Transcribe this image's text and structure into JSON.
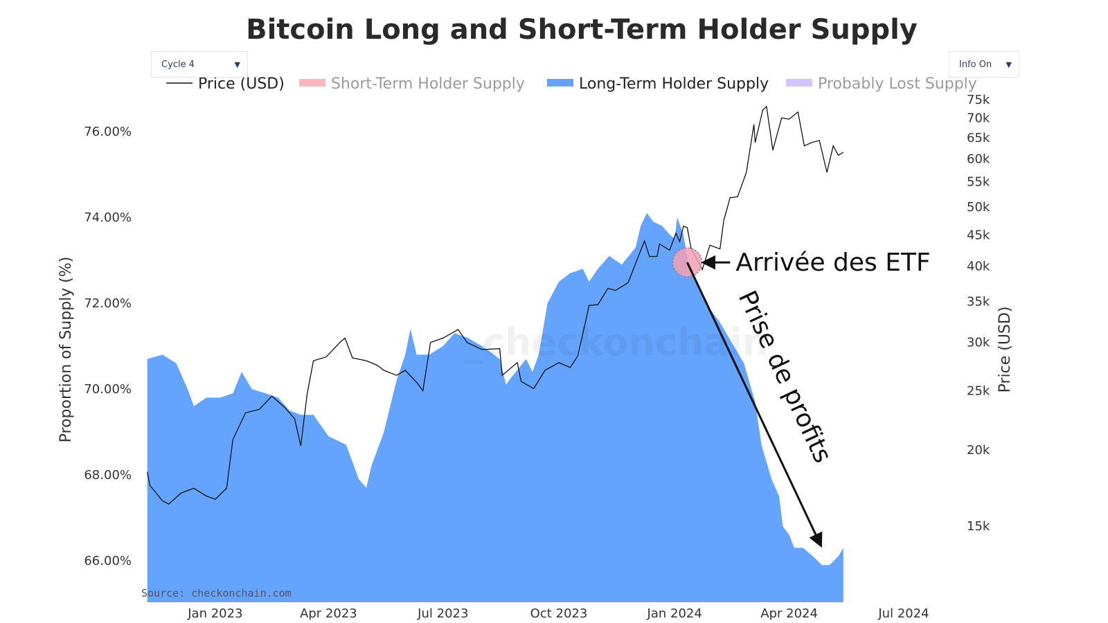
{
  "controls": {
    "cycle_select": "Cycle 4",
    "info_select": "Info On",
    "arrow_glyph": "▼"
  },
  "colors": {
    "price_line": "#111111",
    "sth_supply": "#ffb6c1",
    "lth_supply": "#64a4ff",
    "lost_supply": "#d2c4ff",
    "legend_inactive_text": "#9a9a9a",
    "etf_marker": "#f3a0b4"
  },
  "chart_data": {
    "type": "area",
    "title": "Bitcoin Long and Short-Term Holder Supply",
    "legend": [
      {
        "name": "Price (USD)",
        "symbol": "line",
        "active": true
      },
      {
        "name": "Short-Term Holder Supply",
        "symbol": "box",
        "active": false
      },
      {
        "name": "Long-Term Holder Supply",
        "symbol": "box",
        "active": true
      },
      {
        "name": "Probably Lost Supply",
        "symbol": "box",
        "active": false
      }
    ],
    "legend_position": "top",
    "x_axis": {
      "type": "date",
      "range": [
        "2022-11-01",
        "2024-07-31"
      ],
      "ticks": [
        {
          "date": "2023-01-01",
          "label": "Jan 2023"
        },
        {
          "date": "2023-04-01",
          "label": "Apr 2023"
        },
        {
          "date": "2023-07-01",
          "label": "Jul 2023"
        },
        {
          "date": "2023-10-01",
          "label": "Oct 2023"
        },
        {
          "date": "2024-01-01",
          "label": "Jan 2024"
        },
        {
          "date": "2024-04-01",
          "label": "Apr 2024"
        },
        {
          "date": "2024-07-01",
          "label": "Jul 2024"
        }
      ]
    },
    "y_left": {
      "title": "Proportion of Supply (%)",
      "range": [
        65.0,
        77.0
      ],
      "ticks": [
        {
          "v": 66,
          "label": "66.00%"
        },
        {
          "v": 68,
          "label": "68.00%"
        },
        {
          "v": 70,
          "label": "70.00%"
        },
        {
          "v": 72,
          "label": "72.00%"
        },
        {
          "v": 74,
          "label": "74.00%"
        },
        {
          "v": 76,
          "label": "76.00%"
        }
      ]
    },
    "y_right": {
      "title": "Price (USD)",
      "scale": "log",
      "range": [
        11000,
        78000
      ],
      "ticks": [
        {
          "v": 15000,
          "label": "15k"
        },
        {
          "v": 20000,
          "label": "20k"
        },
        {
          "v": 25000,
          "label": "25k"
        },
        {
          "v": 30000,
          "label": "30k"
        },
        {
          "v": 35000,
          "label": "35k"
        },
        {
          "v": 40000,
          "label": "40k"
        },
        {
          "v": 45000,
          "label": "45k"
        },
        {
          "v": 50000,
          "label": "50k"
        },
        {
          "v": 55000,
          "label": "55k"
        },
        {
          "v": 60000,
          "label": "60k"
        },
        {
          "v": 65000,
          "label": "65k"
        },
        {
          "v": 70000,
          "label": "70k"
        },
        {
          "v": 75000,
          "label": "75k"
        }
      ]
    },
    "series": [
      {
        "name": "Long-Term Holder Supply",
        "kind": "area",
        "unit": "%",
        "points": [
          [
            "2022-11-08",
            70.7
          ],
          [
            "2022-11-20",
            70.8
          ],
          [
            "2022-12-01",
            70.6
          ],
          [
            "2022-12-10",
            70.0
          ],
          [
            "2022-12-15",
            69.6
          ],
          [
            "2022-12-25",
            69.8
          ],
          [
            "2023-01-05",
            69.8
          ],
          [
            "2023-01-15",
            69.9
          ],
          [
            "2023-01-22",
            70.4
          ],
          [
            "2023-01-30",
            70.0
          ],
          [
            "2023-02-10",
            69.9
          ],
          [
            "2023-02-20",
            69.8
          ],
          [
            "2023-03-01",
            69.5
          ],
          [
            "2023-03-10",
            69.4
          ],
          [
            "2023-03-20",
            69.4
          ],
          [
            "2023-04-01",
            68.9
          ],
          [
            "2023-04-15",
            68.7
          ],
          [
            "2023-04-25",
            67.9
          ],
          [
            "2023-05-01",
            67.7
          ],
          [
            "2023-05-05",
            68.2
          ],
          [
            "2023-05-15",
            69.0
          ],
          [
            "2023-05-25",
            70.2
          ],
          [
            "2023-06-01",
            70.8
          ],
          [
            "2023-06-05",
            71.4
          ],
          [
            "2023-06-10",
            70.8
          ],
          [
            "2023-06-20",
            70.8
          ],
          [
            "2023-07-01",
            71.0
          ],
          [
            "2023-07-10",
            71.3
          ],
          [
            "2023-07-20",
            71.2
          ],
          [
            "2023-08-01",
            71.0
          ],
          [
            "2023-08-15",
            70.7
          ],
          [
            "2023-08-20",
            70.1
          ],
          [
            "2023-08-25",
            70.3
          ],
          [
            "2023-09-05",
            70.7
          ],
          [
            "2023-09-10",
            70.4
          ],
          [
            "2023-09-15",
            70.8
          ],
          [
            "2023-09-22",
            72.0
          ],
          [
            "2023-10-01",
            72.5
          ],
          [
            "2023-10-10",
            72.7
          ],
          [
            "2023-10-20",
            72.8
          ],
          [
            "2023-10-25",
            72.5
          ],
          [
            "2023-11-01",
            72.8
          ],
          [
            "2023-11-10",
            73.1
          ],
          [
            "2023-11-20",
            72.9
          ],
          [
            "2023-12-01",
            73.3
          ],
          [
            "2023-12-05",
            73.8
          ],
          [
            "2023-12-10",
            74.1
          ],
          [
            "2023-12-15",
            73.9
          ],
          [
            "2023-12-22",
            73.8
          ],
          [
            "2023-12-28",
            73.6
          ],
          [
            "2024-01-01",
            73.5
          ],
          [
            "2024-01-03",
            74.0
          ],
          [
            "2024-01-08",
            73.6
          ],
          [
            "2024-01-12",
            72.9
          ],
          [
            "2024-01-20",
            72.4
          ],
          [
            "2024-01-28",
            71.9
          ],
          [
            "2024-02-05",
            71.6
          ],
          [
            "2024-02-15",
            71.1
          ],
          [
            "2024-02-25",
            70.6
          ],
          [
            "2024-03-05",
            69.7
          ],
          [
            "2024-03-10",
            68.7
          ],
          [
            "2024-03-18",
            67.9
          ],
          [
            "2024-03-24",
            67.5
          ],
          [
            "2024-03-27",
            66.8
          ],
          [
            "2024-04-01",
            66.6
          ],
          [
            "2024-04-05",
            66.3
          ],
          [
            "2024-04-12",
            66.3
          ],
          [
            "2024-04-20",
            66.1
          ],
          [
            "2024-04-27",
            65.9
          ],
          [
            "2024-05-03",
            65.9
          ],
          [
            "2024-05-10",
            66.1
          ],
          [
            "2024-05-14",
            66.3
          ]
        ]
      },
      {
        "name": "Price (USD)",
        "kind": "line",
        "unit": "USD",
        "points": [
          [
            "2022-11-08",
            18400
          ],
          [
            "2022-11-10",
            17500
          ],
          [
            "2022-11-20",
            16500
          ],
          [
            "2022-11-25",
            16300
          ],
          [
            "2022-12-05",
            17000
          ],
          [
            "2022-12-15",
            17300
          ],
          [
            "2022-12-25",
            16800
          ],
          [
            "2023-01-01",
            16600
          ],
          [
            "2023-01-10",
            17300
          ],
          [
            "2023-01-15",
            20800
          ],
          [
            "2023-01-25",
            23000
          ],
          [
            "2023-02-05",
            23300
          ],
          [
            "2023-02-15",
            24500
          ],
          [
            "2023-02-25",
            23500
          ],
          [
            "2023-03-05",
            22500
          ],
          [
            "2023-03-10",
            20300
          ],
          [
            "2023-03-15",
            24700
          ],
          [
            "2023-03-20",
            28000
          ],
          [
            "2023-03-30",
            28400
          ],
          [
            "2023-04-10",
            30000
          ],
          [
            "2023-04-14",
            30500
          ],
          [
            "2023-04-20",
            28300
          ],
          [
            "2023-05-01",
            28000
          ],
          [
            "2023-05-10",
            27500
          ],
          [
            "2023-05-15",
            27000
          ],
          [
            "2023-05-25",
            26500
          ],
          [
            "2023-06-01",
            27000
          ],
          [
            "2023-06-10",
            25800
          ],
          [
            "2023-06-15",
            25000
          ],
          [
            "2023-06-21",
            30000
          ],
          [
            "2023-07-01",
            30500
          ],
          [
            "2023-07-13",
            31500
          ],
          [
            "2023-07-20",
            30000
          ],
          [
            "2023-08-01",
            29200
          ],
          [
            "2023-08-15",
            29300
          ],
          [
            "2023-08-17",
            26500
          ],
          [
            "2023-08-29",
            27800
          ],
          [
            "2023-09-01",
            25900
          ],
          [
            "2023-09-11",
            25200
          ],
          [
            "2023-09-20",
            27000
          ],
          [
            "2023-10-01",
            27800
          ],
          [
            "2023-10-10",
            27300
          ],
          [
            "2023-10-16",
            28500
          ],
          [
            "2023-10-23",
            33000
          ],
          [
            "2023-10-25",
            34500
          ],
          [
            "2023-11-01",
            34600
          ],
          [
            "2023-11-09",
            36800
          ],
          [
            "2023-11-15",
            36500
          ],
          [
            "2023-11-25",
            37600
          ],
          [
            "2023-12-04",
            41900
          ],
          [
            "2023-12-08",
            44000
          ],
          [
            "2023-12-12",
            41500
          ],
          [
            "2023-12-18",
            41500
          ],
          [
            "2023-12-20",
            43500
          ],
          [
            "2023-12-28",
            42500
          ],
          [
            "2024-01-02",
            45300
          ],
          [
            "2024-01-05",
            43900
          ],
          [
            "2024-01-08",
            46500
          ],
          [
            "2024-01-11",
            46300
          ],
          [
            "2024-01-14",
            42800
          ],
          [
            "2024-01-18",
            41300
          ],
          [
            "2024-01-23",
            39500
          ],
          [
            "2024-01-29",
            43300
          ],
          [
            "2024-02-06",
            42700
          ],
          [
            "2024-02-09",
            47500
          ],
          [
            "2024-02-14",
            51800
          ],
          [
            "2024-02-20",
            52000
          ],
          [
            "2024-02-27",
            57000
          ],
          [
            "2024-03-04",
            68300
          ],
          [
            "2024-03-05",
            63800
          ],
          [
            "2024-03-11",
            72100
          ],
          [
            "2024-03-14",
            73100
          ],
          [
            "2024-03-19",
            62000
          ],
          [
            "2024-03-26",
            70000
          ],
          [
            "2024-04-01",
            69700
          ],
          [
            "2024-04-08",
            71600
          ],
          [
            "2024-04-13",
            63000
          ],
          [
            "2024-04-19",
            63800
          ],
          [
            "2024-04-25",
            64300
          ],
          [
            "2024-05-01",
            57000
          ],
          [
            "2024-05-06",
            63000
          ],
          [
            "2024-05-10",
            60800
          ],
          [
            "2024-05-14",
            61500
          ]
        ]
      }
    ],
    "annotations": [
      {
        "text": "Arrivée des ETF",
        "at": [
          "2024-01-11",
          72.95
        ]
      },
      {
        "text": "Prise de profits",
        "from": [
          "2024-01-11",
          72.95
        ],
        "to": [
          "2024-04-26",
          66.3
        ]
      }
    ],
    "source": "Source: checkonchain.com",
    "watermark": "_checkonchain",
    "grid": false
  }
}
